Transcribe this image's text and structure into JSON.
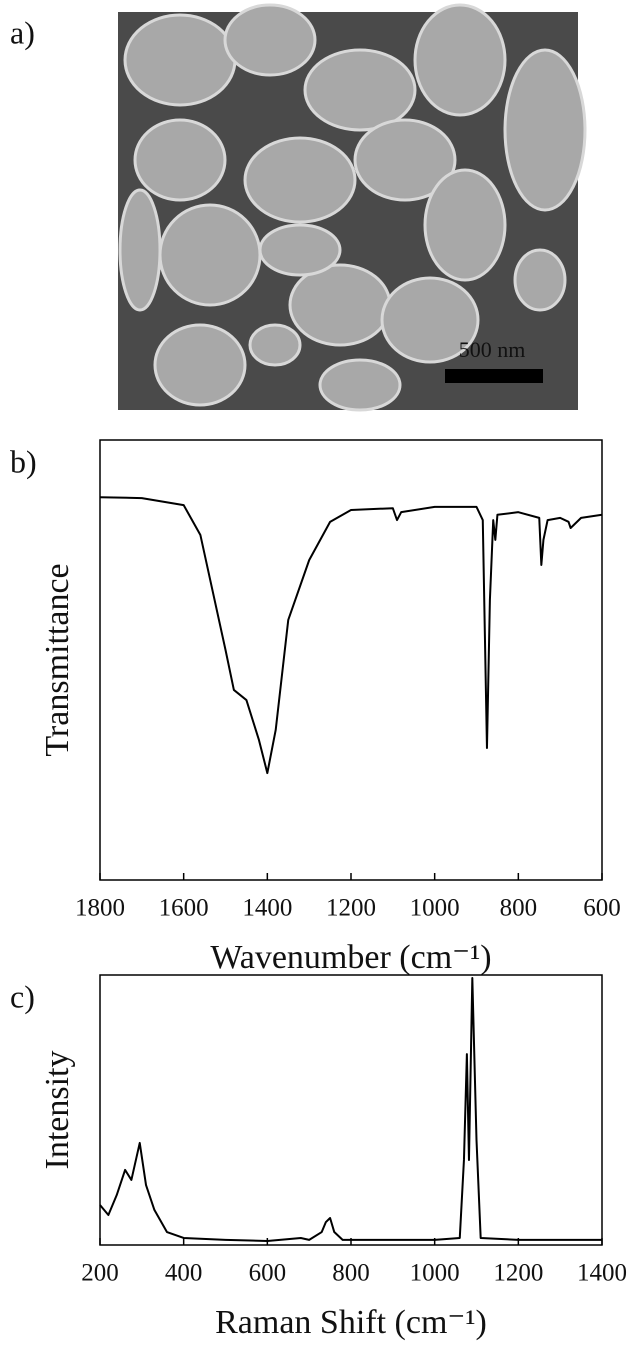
{
  "image": {
    "label": "a)",
    "scale_bar": "500 nm"
  },
  "chart_data": [
    {
      "type": "line",
      "label": "b)",
      "y_label": "Transmittance",
      "x_label": "Wavenumber (cm⁻¹)",
      "xlim": [
        1800,
        600
      ],
      "xticks": [
        1800,
        1600,
        1400,
        1200,
        1000,
        800,
        600
      ],
      "ylim": [
        0,
        100
      ],
      "color": "#000000",
      "x": [
        1800,
        1700,
        1600,
        1560,
        1500,
        1480,
        1450,
        1420,
        1400,
        1380,
        1350,
        1300,
        1250,
        1200,
        1100,
        1090,
        1080,
        1000,
        900,
        885,
        875,
        868,
        860,
        855,
        850,
        800,
        750,
        745,
        740,
        730,
        700,
        680,
        675,
        650,
        600
      ],
      "values": [
        87,
        86.8,
        85.2,
        78.4,
        52.3,
        43.2,
        40.9,
        31.8,
        24.3,
        34.1,
        59.1,
        72.7,
        81.4,
        84.1,
        84.5,
        81.8,
        83.6,
        84.8,
        84.8,
        81.8,
        30.0,
        63.6,
        81.8,
        77.3,
        83.0,
        83.6,
        82.3,
        71.6,
        77.3,
        81.8,
        82.3,
        81.4,
        80.0,
        82.3,
        83.0
      ]
    },
    {
      "type": "line",
      "label": "c)",
      "y_label": "Intensity",
      "x_label": "Raman Shift (cm⁻¹)",
      "xlim": [
        200,
        1400
      ],
      "xticks": [
        200,
        400,
        600,
        800,
        1000,
        1200,
        1400
      ],
      "ylim": [
        0,
        100
      ],
      "color": "#000000",
      "x": [
        200,
        220,
        240,
        260,
        275,
        295,
        310,
        330,
        360,
        400,
        500,
        600,
        680,
        700,
        730,
        740,
        750,
        760,
        780,
        900,
        1000,
        1060,
        1070,
        1077,
        1082,
        1090,
        1100,
        1110,
        1200,
        1400
      ],
      "values": [
        14.8,
        11.1,
        18.5,
        27.8,
        24.1,
        37.8,
        22.2,
        13.0,
        4.8,
        2.6,
        1.9,
        1.5,
        2.6,
        1.9,
        4.8,
        8.5,
        10.0,
        4.8,
        1.9,
        1.9,
        1.9,
        2.6,
        31.5,
        70.7,
        31.5,
        98.9,
        38.9,
        2.6,
        1.9,
        1.9
      ]
    }
  ]
}
